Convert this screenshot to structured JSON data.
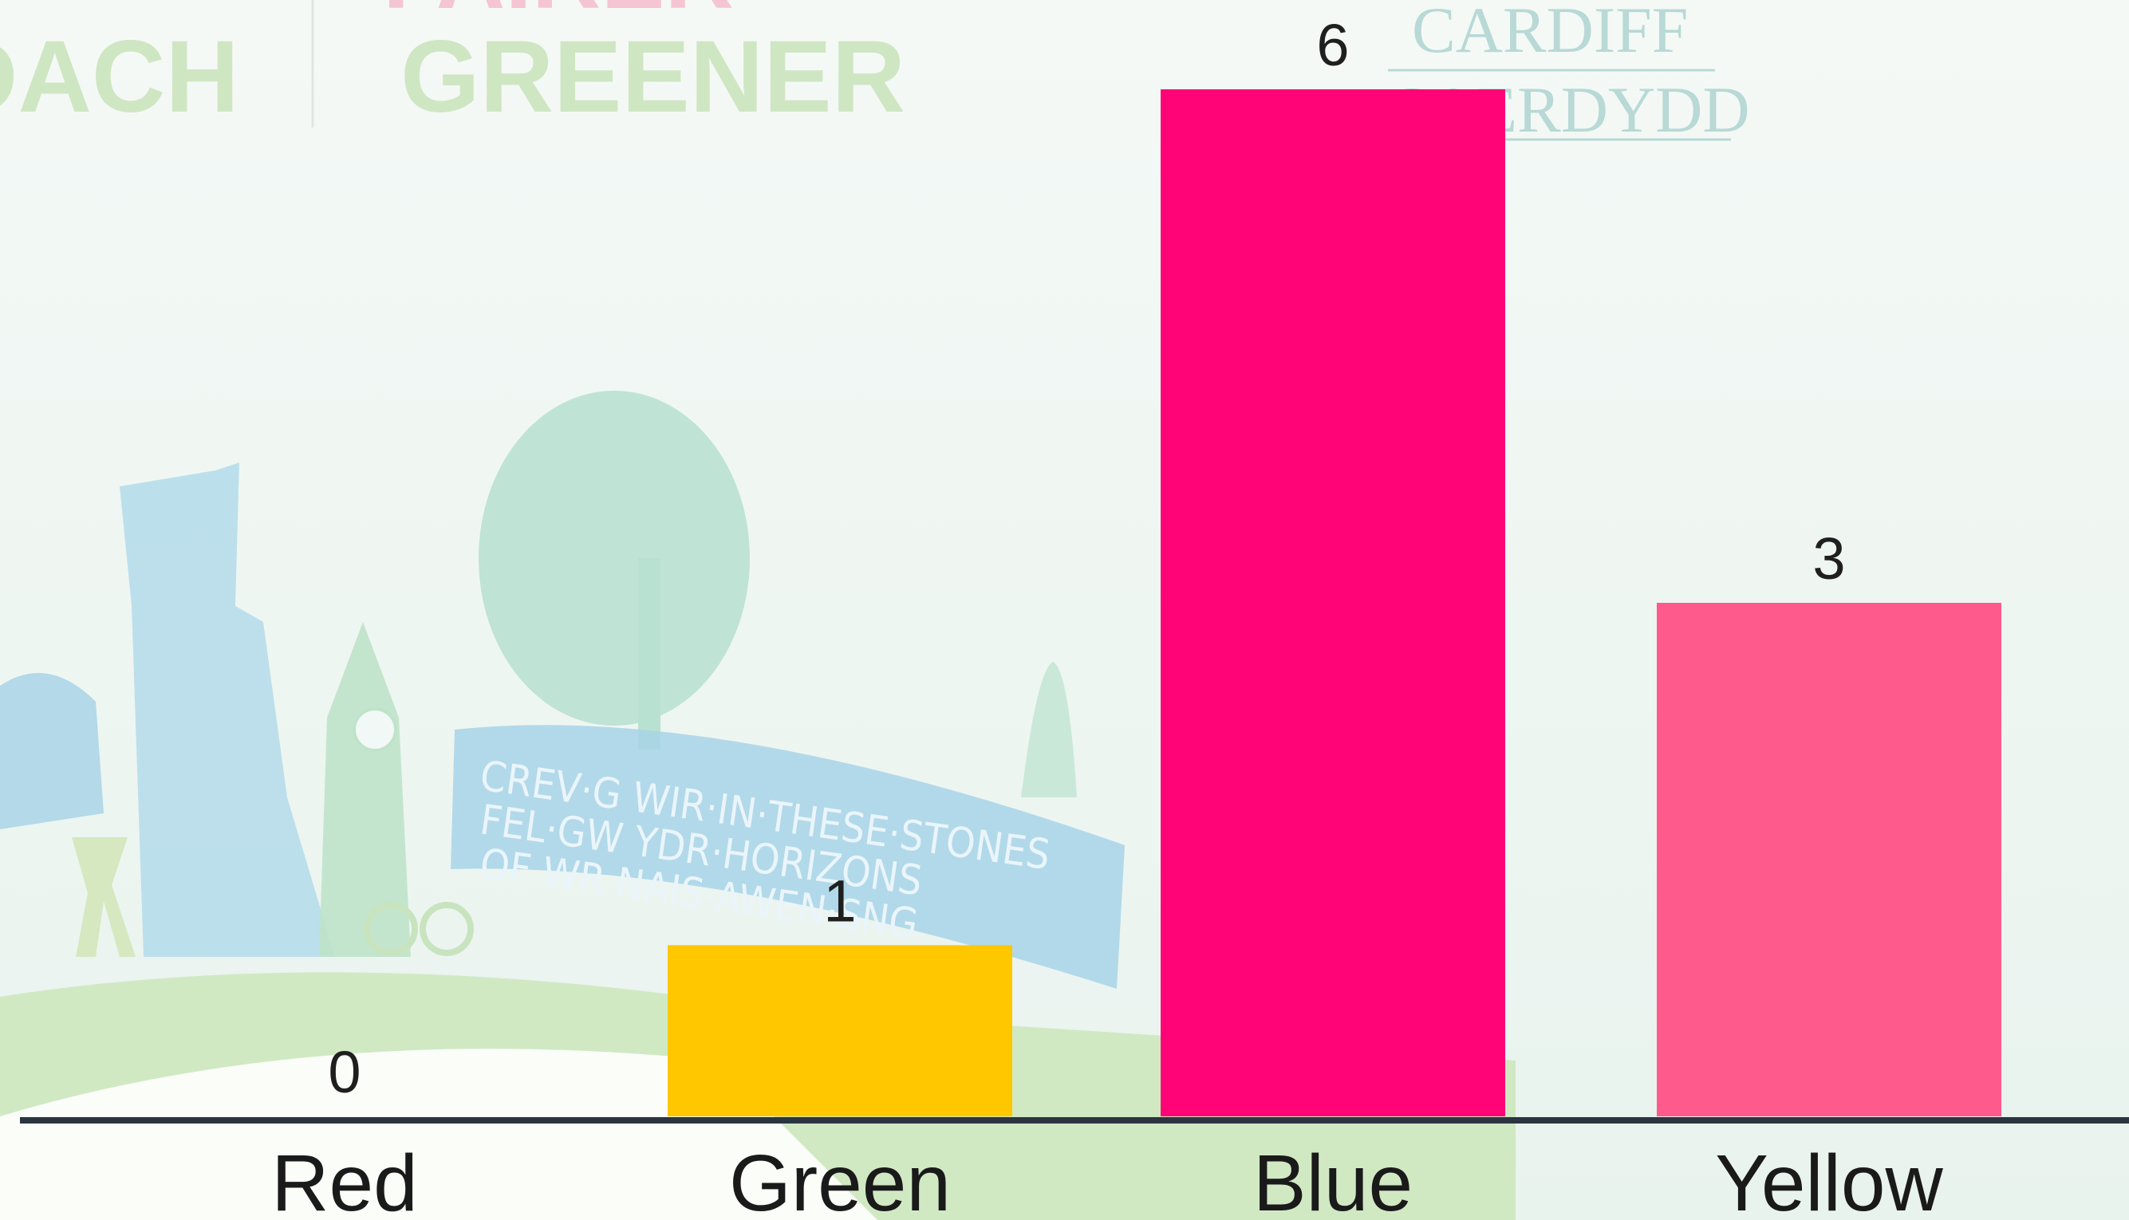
{
  "watermark": {
    "left_word": "DACH",
    "middle_top": "FAIRER",
    "middle_word": "GREENER",
    "right_top": "CARDIFF",
    "right_bottom": "CAERDYDD",
    "banner_lines": [
      "CREV·G WIR·IN·THESE·STONES",
      "FEL·GW YDR·HORIZONS",
      "OF WR NAIS·AWEN·SNG"
    ]
  },
  "colors": {
    "axis": "#2b3540",
    "label": "#1f1f1f",
    "background": "#eef6f1",
    "watermark_green": "#cfe6c2",
    "watermark_pink": "#f6b9c8",
    "watermark_teal": "#b8d9d6"
  },
  "chart_data": {
    "type": "bar",
    "categories": [
      "Red",
      "Green",
      "Blue",
      "Yellow"
    ],
    "values": [
      0,
      1,
      6,
      3
    ],
    "bar_colors": [
      "#e8e8e8",
      "#ffc700",
      "#ff0476",
      "#ff5a8c"
    ],
    "data_labels": [
      "0",
      "1",
      "6",
      "3"
    ],
    "ylim": [
      0,
      6
    ],
    "grid": false,
    "legend": "none",
    "title": "",
    "xlabel": "",
    "ylabel": ""
  }
}
